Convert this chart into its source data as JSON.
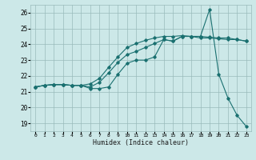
{
  "xlabel": "Humidex (Indice chaleur)",
  "background_color": "#cce8e8",
  "grid_color": "#99bbbb",
  "line_color": "#1a7070",
  "xlim": [
    -0.5,
    23.5
  ],
  "ylim": [
    18.5,
    26.5
  ],
  "xticks": [
    0,
    1,
    2,
    3,
    4,
    5,
    6,
    7,
    8,
    9,
    10,
    11,
    12,
    13,
    14,
    15,
    16,
    17,
    18,
    19,
    20,
    21,
    22,
    23
  ],
  "yticks": [
    19,
    20,
    21,
    22,
    23,
    24,
    25,
    26
  ],
  "series": {
    "line1": {
      "x": [
        0,
        1,
        2,
        3,
        4,
        5,
        6,
        7,
        8,
        9,
        10,
        11,
        12,
        13,
        14,
        15,
        16,
        17,
        18,
        19,
        20,
        21,
        22,
        23
      ],
      "y": [
        21.3,
        21.4,
        21.45,
        21.45,
        21.4,
        21.4,
        21.2,
        21.2,
        21.3,
        22.1,
        22.8,
        23.0,
        23.0,
        23.2,
        24.3,
        24.2,
        24.5,
        24.5,
        24.5,
        26.2,
        22.1,
        20.6,
        19.5,
        18.8
      ]
    },
    "line2": {
      "x": [
        0,
        1,
        2,
        3,
        4,
        5,
        6,
        7,
        8,
        9,
        10,
        11,
        12,
        13,
        14,
        15,
        16,
        17,
        18,
        19,
        20,
        21,
        22,
        23
      ],
      "y": [
        21.3,
        21.4,
        21.45,
        21.45,
        21.4,
        21.4,
        21.3,
        21.6,
        22.2,
        22.85,
        23.35,
        23.55,
        23.8,
        24.05,
        24.3,
        24.2,
        24.5,
        24.5,
        24.4,
        24.4,
        24.35,
        24.3,
        24.3,
        24.2
      ]
    },
    "line3": {
      "x": [
        0,
        1,
        2,
        3,
        4,
        5,
        6,
        7,
        8,
        9,
        10,
        11,
        12,
        13,
        14,
        15,
        16,
        17,
        18,
        19,
        20,
        21,
        22,
        23
      ],
      "y": [
        21.3,
        21.4,
        21.45,
        21.45,
        21.4,
        21.4,
        21.5,
        21.85,
        22.55,
        23.2,
        23.8,
        24.05,
        24.25,
        24.4,
        24.5,
        24.5,
        24.55,
        24.5,
        24.5,
        24.45,
        24.4,
        24.4,
        24.3,
        24.2
      ]
    }
  }
}
